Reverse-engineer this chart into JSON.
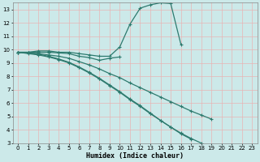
{
  "title": "",
  "xlabel": "Humidex (Indice chaleur)",
  "bg_color": "#cce9e9",
  "grid_color": "#e8b4b4",
  "line_color": "#2d7a6e",
  "xlim": [
    -0.5,
    23.5
  ],
  "ylim": [
    3,
    13.5
  ],
  "yticks": [
    3,
    4,
    5,
    6,
    7,
    8,
    9,
    10,
    11,
    12,
    13
  ],
  "xticks": [
    0,
    1,
    2,
    3,
    4,
    5,
    6,
    7,
    8,
    9,
    10,
    11,
    12,
    13,
    14,
    15,
    16,
    17,
    18,
    19,
    20,
    21,
    22,
    23
  ],
  "lines": [
    {
      "x": [
        0,
        1,
        2,
        3,
        4,
        5,
        6,
        7,
        8,
        9,
        10,
        11,
        12,
        13,
        14,
        15,
        16,
        17,
        18,
        19,
        20,
        21,
        22,
        23
      ],
      "y": [
        9.8,
        9.8,
        9.9,
        9.9,
        9.8,
        9.8,
        9.7,
        9.6,
        9.5,
        9.5,
        10.2,
        11.9,
        13.1,
        13.35,
        13.5,
        13.45,
        10.4,
        null,
        null,
        null,
        null,
        null,
        null,
        null
      ]
    },
    {
      "x": [
        0,
        1,
        2,
        3,
        4,
        5,
        6,
        7,
        8,
        9,
        10,
        11,
        12,
        13,
        14,
        15,
        16,
        17,
        18,
        19,
        20,
        21,
        22,
        23
      ],
      "y": [
        9.8,
        9.8,
        9.8,
        9.8,
        9.75,
        9.7,
        9.5,
        9.4,
        9.2,
        9.35,
        9.45,
        null,
        null,
        null,
        null,
        null,
        null,
        null,
        null,
        null,
        null,
        null,
        null,
        null
      ]
    },
    {
      "x": [
        0,
        1,
        2,
        3,
        4,
        5,
        6,
        7,
        8,
        9,
        10,
        11,
        12,
        13,
        14,
        15,
        16,
        17,
        18,
        19,
        20,
        21,
        22,
        23
      ],
      "y": [
        9.8,
        9.75,
        9.7,
        9.6,
        9.5,
        9.35,
        9.1,
        8.85,
        8.55,
        8.2,
        7.9,
        7.5,
        7.15,
        6.8,
        6.45,
        6.1,
        5.75,
        5.4,
        5.1,
        4.8,
        null,
        null,
        null,
        null
      ]
    },
    {
      "x": [
        0,
        1,
        2,
        3,
        4,
        5,
        6,
        7,
        8,
        9,
        10,
        11,
        12,
        13,
        14,
        15,
        16,
        17,
        18,
        19,
        20,
        21,
        22,
        23
      ],
      "y": [
        9.8,
        9.7,
        9.6,
        9.45,
        9.25,
        9.0,
        8.65,
        8.25,
        7.8,
        7.3,
        6.8,
        6.25,
        5.75,
        5.2,
        4.7,
        4.2,
        3.7,
        3.3,
        null,
        null,
        null,
        null,
        null,
        null
      ]
    },
    {
      "x": [
        0,
        1,
        2,
        3,
        4,
        5,
        6,
        7,
        8,
        9,
        10,
        11,
        12,
        13,
        14,
        15,
        16,
        17,
        18,
        19,
        20,
        21,
        22,
        23
      ],
      "y": [
        9.8,
        9.75,
        9.65,
        9.5,
        9.3,
        9.05,
        8.7,
        8.3,
        7.85,
        7.35,
        6.85,
        6.3,
        5.8,
        5.25,
        4.7,
        4.2,
        3.75,
        3.35,
        3.0,
        null,
        null,
        null,
        null,
        null
      ]
    }
  ]
}
